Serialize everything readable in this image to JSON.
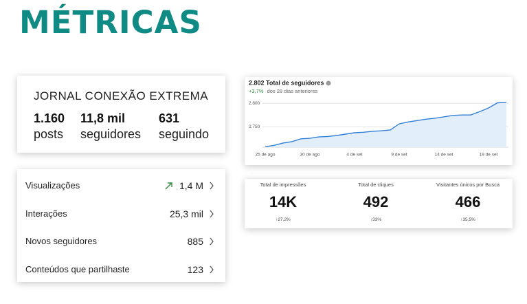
{
  "header": {
    "title": "MÉTRICAS"
  },
  "profile": {
    "name": "JORNAL CONEXÃO EXTREMA",
    "stats": [
      {
        "value": "1.160",
        "label": "posts"
      },
      {
        "value": "11,8 mil",
        "label": "seguidores"
      },
      {
        "value": "631",
        "label": "seguindo"
      }
    ]
  },
  "metrics": {
    "rows": [
      {
        "label": "Visualizações",
        "value": "1,4 M"
      },
      {
        "label": "Interações",
        "value": "25,3 mil"
      },
      {
        "label": "Novos seguidores",
        "value": "885"
      },
      {
        "label": "Conteúdos que partilhaste",
        "value": "123"
      }
    ]
  },
  "chart_data": {
    "type": "line",
    "title": "2.802 Total de seguidores",
    "change": "+3,7%",
    "subtitle": "dos 28 dias anteriores",
    "categories": [
      "25 de ago",
      null,
      null,
      null,
      null,
      "30 de ago",
      null,
      null,
      null,
      null,
      "4 de set",
      null,
      null,
      null,
      null,
      "9 de set",
      null,
      null,
      null,
      null,
      "14 de set",
      null,
      null,
      null,
      null,
      "19 de set",
      null,
      null
    ],
    "series": [
      {
        "name": "Total de seguidores",
        "color": "#2f7fd6",
        "values": [
          2707,
          2710,
          2715,
          2718,
          2724,
          2725,
          2728,
          2729,
          2731,
          2734,
          2737,
          2738,
          2740,
          2741,
          2743,
          2756,
          2760,
          2763,
          2766,
          2768,
          2771,
          2774,
          2775,
          2775,
          2782,
          2790,
          2801,
          2802
        ]
      }
    ],
    "ylim": [
      2706,
      2815
    ],
    "yticks": [
      {
        "value": 2750,
        "label": "2.750"
      },
      {
        "value": 2800,
        "label": "2.800"
      }
    ],
    "grid": true
  },
  "summary": {
    "items": [
      {
        "title": "Total de impressões",
        "value": "14K",
        "change": "↑27,2%"
      },
      {
        "title": "Total de cliques",
        "value": "492",
        "change": "↑33%"
      },
      {
        "title": "Visitantes únicos por Busca",
        "value": "466",
        "change": "↑35,5%"
      }
    ]
  }
}
